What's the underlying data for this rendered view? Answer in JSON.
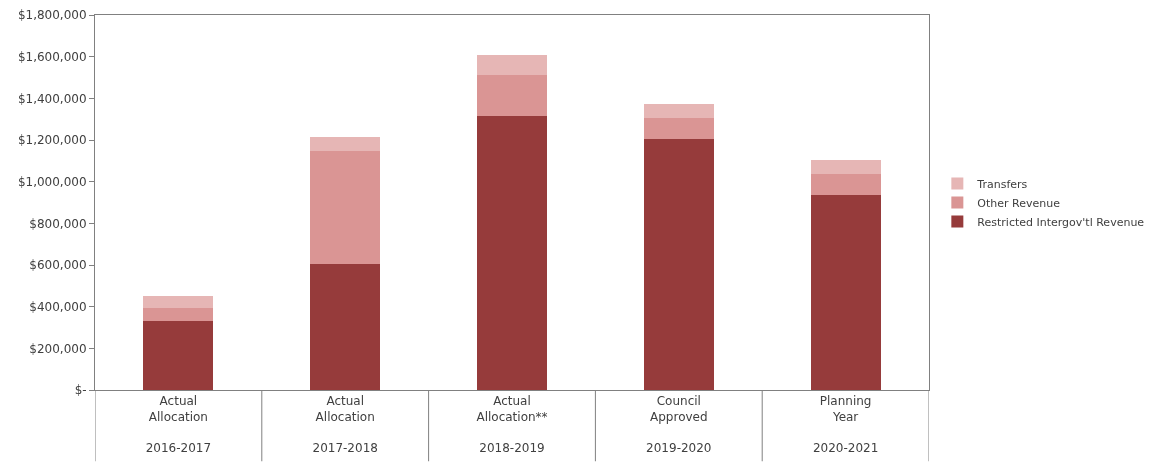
{
  "chart_data": {
    "type": "bar",
    "stacked": true,
    "categories": [
      "Actual\nAllocation\n\n2016-2017",
      "Actual\nAllocation\n\n2017-2018",
      "Actual\nAllocation**\n\n2018-2019",
      "Council\nApproved\n\n2019-2020",
      "Planning\nYear\n\n2020-2021"
    ],
    "series": [
      {
        "name": "Restricted Intergov'tl Revenue",
        "color": "#963b3b",
        "values": [
          330000,
          605000,
          1315000,
          1205000,
          935000
        ]
      },
      {
        "name": "Other Revenue",
        "color": "#da9594",
        "values": [
          65000,
          540000,
          195000,
          100000,
          100000
        ]
      },
      {
        "name": "Transfers",
        "color": "#e6b6b5",
        "values": [
          55000,
          70000,
          100000,
          70000,
          70000
        ]
      }
    ],
    "ylim": [
      0,
      1800000
    ],
    "yticks": [
      {
        "value": 0,
        "label": "$-"
      },
      {
        "value": 200000,
        "label": "$200,000"
      },
      {
        "value": 400000,
        "label": "$400,000"
      },
      {
        "value": 600000,
        "label": "$600,000"
      },
      {
        "value": 800000,
        "label": "$800,000"
      },
      {
        "value": 1000000,
        "label": "$1,000,000"
      },
      {
        "value": 1200000,
        "label": "$1,200,000"
      },
      {
        "value": 1400000,
        "label": "$1,400,000"
      },
      {
        "value": 1600000,
        "label": "$1,600,000"
      },
      {
        "value": 1800000,
        "label": "$1,800,000"
      }
    ],
    "grid": false,
    "legend": "right"
  }
}
